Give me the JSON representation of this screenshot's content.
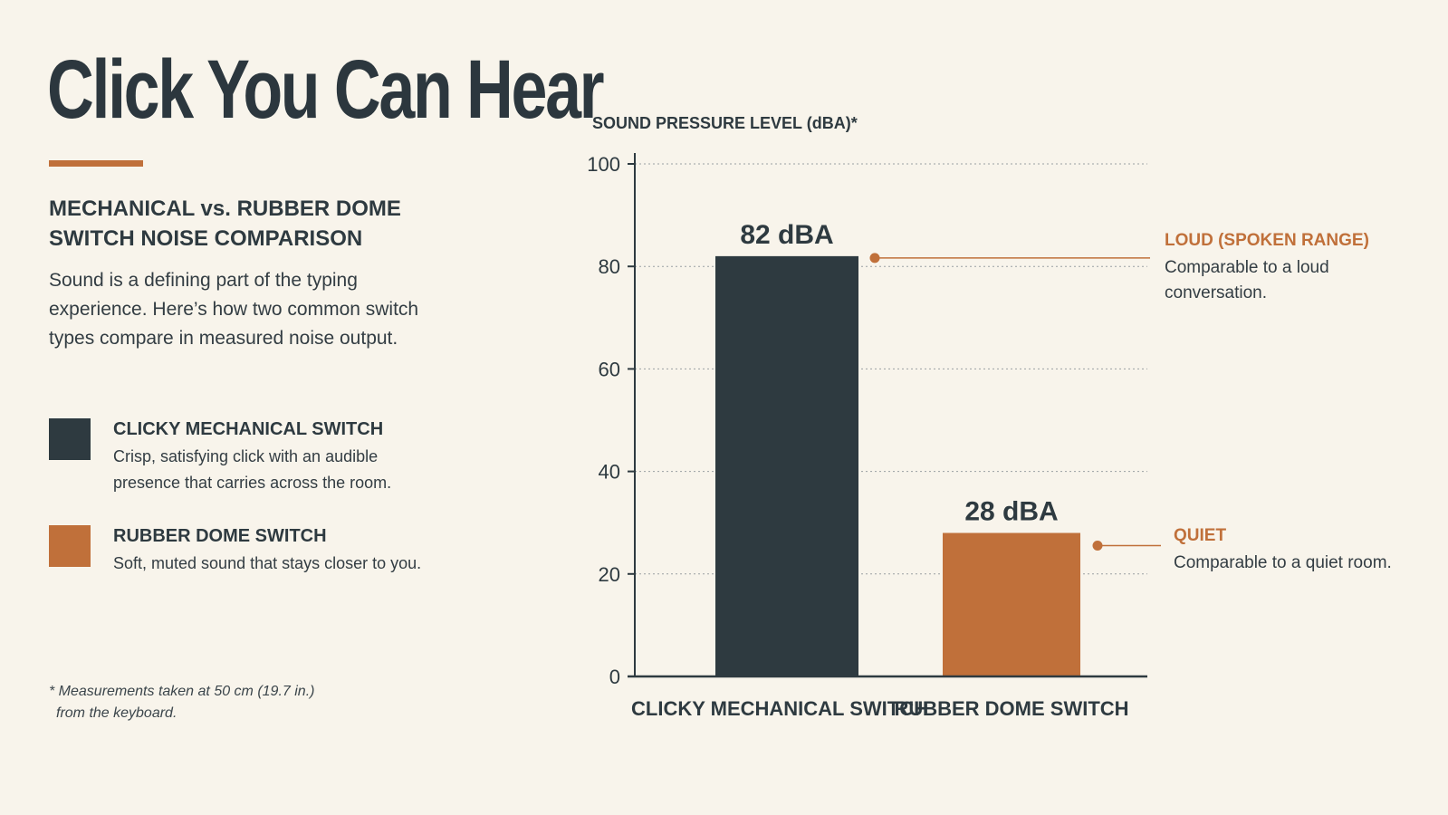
{
  "title": "Click You Can Hear",
  "subtitle": "MECHANICAL vs. RUBBER DOME SWITCH NOISE COMPARISON",
  "intro": "Sound is a defining part of the typing experience. Here’s how two common switch types compare in measured noise output.",
  "legend": [
    {
      "name": "CLICKY MECHANICAL SWITCH",
      "description": "Crisp, satisfying click with an audible presence that carries across the room.",
      "color": "#2e3a40"
    },
    {
      "name": "RUBBER DOME SWITCH",
      "description": "Soft, muted sound that stays closer to you.",
      "color": "#c0703a"
    }
  ],
  "footnote": {
    "line1": "* Measurements taken at 50 cm (19.7 in.)",
    "line2": "from the keyboard."
  },
  "callouts": [
    {
      "title": "LOUD (SPOKEN RANGE)",
      "description": "Comparable to a loud conversation."
    },
    {
      "title": "QUIET",
      "description": "Comparable to a quiet room."
    }
  ],
  "colors": {
    "background": "#f8f4eb",
    "dark": "#2e3a40",
    "accent": "#c0703a",
    "grid": "#9aa0a3"
  },
  "chart_data": {
    "type": "bar",
    "ylabel": "SOUND PRESSURE LEVEL (dBA)*",
    "categories": [
      "CLICKY MECHANICAL SWITCH",
      "RUBBER DOME SWITCH"
    ],
    "values": [
      82,
      28
    ],
    "value_labels": [
      "82 dBA",
      "28 dBA"
    ],
    "bar_colors": [
      "#2e3a40",
      "#c0703a"
    ],
    "ylim": [
      0,
      100
    ],
    "yticks": [
      0,
      20,
      40,
      60,
      80,
      100
    ],
    "grid": true,
    "grid_style": "dotted"
  }
}
